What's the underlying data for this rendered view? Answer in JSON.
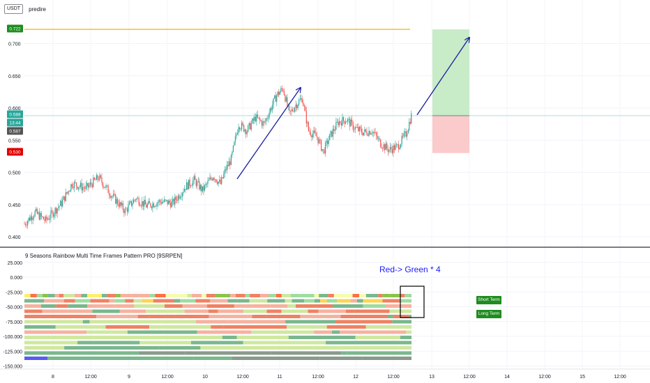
{
  "header": {
    "quote_currency": "USDT",
    "author": "predire"
  },
  "indicator": {
    "title": "9 Seasons Rainbow Multi Time Frames Pattern PRO [9SRPEN]"
  },
  "annotation": {
    "text": "Red-> Green * 4"
  },
  "tags": {
    "short_term": "Short Term",
    "long_term": "Long Term"
  },
  "price_axis": {
    "ticks": [
      "0.400",
      "0.450",
      "0.500",
      "0.550",
      "0.600",
      "0.650",
      "0.700"
    ]
  },
  "price_badges": [
    {
      "text": "0.722",
      "color": "#1e8c1e"
    },
    {
      "text": "0.588",
      "color": "#26a69a"
    },
    {
      "text": "13:44",
      "color": "#26a69a"
    },
    {
      "text": "0.587",
      "color": "#555555"
    },
    {
      "text": "0.530",
      "color": "#e00000"
    }
  ],
  "indicator_axis": {
    "ticks": [
      "25.000",
      "0.000",
      "-25.000",
      "-50.000",
      "-75.000",
      "-100.000",
      "-125.000",
      "-150.000"
    ]
  },
  "time_axis": {
    "labels": [
      "8",
      "12:00",
      "9",
      "12:00",
      "10",
      "12:00",
      "11",
      "12:00",
      "12",
      "12:00",
      "13",
      "12:00",
      "14",
      "12:00",
      "15",
      "12:00"
    ]
  },
  "colors": {
    "up": "#26a69a",
    "down": "#ef5350",
    "arrow": "#1a1a9c",
    "target_line": "#f0b400",
    "profit_zone": "#c8ebc8",
    "loss_zone": "#fbcaca",
    "current_line": "#26a69a"
  },
  "chart_data": {
    "type": "candlestick",
    "price_range": [
      0.4,
      0.7
    ],
    "target_price": 0.722,
    "entry_price": 0.588,
    "stop_price": 0.53,
    "close_path": [
      [
        0,
        0.42
      ],
      [
        10,
        0.438
      ],
      [
        20,
        0.425
      ],
      [
        35,
        0.452
      ],
      [
        45,
        0.483
      ],
      [
        58,
        0.475
      ],
      [
        70,
        0.492
      ],
      [
        82,
        0.465
      ],
      [
        95,
        0.44
      ],
      [
        105,
        0.46
      ],
      [
        115,
        0.448
      ],
      [
        128,
        0.455
      ],
      [
        140,
        0.452
      ],
      [
        152,
        0.478
      ],
      [
        160,
        0.488
      ],
      [
        168,
        0.472
      ],
      [
        178,
        0.495
      ],
      [
        185,
        0.482
      ],
      [
        190,
        0.505
      ],
      [
        195,
        0.52
      ],
      [
        202,
        0.575
      ],
      [
        210,
        0.565
      ],
      [
        218,
        0.585
      ],
      [
        226,
        0.575
      ],
      [
        232,
        0.598
      ],
      [
        238,
        0.62
      ],
      [
        244,
        0.63
      ],
      [
        250,
        0.59
      ],
      [
        256,
        0.605
      ],
      [
        262,
        0.615
      ],
      [
        268,
        0.565
      ],
      [
        276,
        0.555
      ],
      [
        282,
        0.532
      ],
      [
        288,
        0.555
      ],
      [
        296,
        0.578
      ],
      [
        304,
        0.582
      ],
      [
        312,
        0.568
      ],
      [
        320,
        0.562
      ],
      [
        328,
        0.565
      ],
      [
        336,
        0.545
      ],
      [
        344,
        0.535
      ],
      [
        352,
        0.54
      ],
      [
        360,
        0.56
      ],
      [
        365,
        0.588
      ]
    ],
    "rainbow_rows": 13
  }
}
